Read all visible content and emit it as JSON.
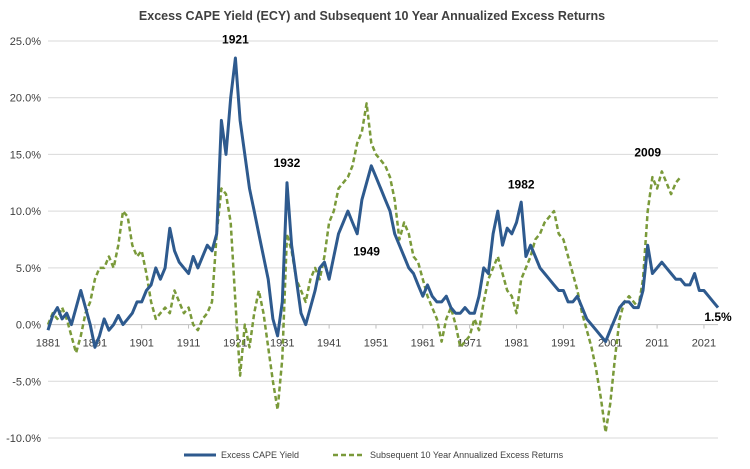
{
  "chart_data": {
    "type": "line",
    "title": "Excess CAPE Yield (ECY) and Subsequent 10 Year Annualized Excess Returns",
    "xlabel": "",
    "ylabel": "",
    "xlim": [
      1881,
      2024
    ],
    "ylim": [
      -10,
      25
    ],
    "x_ticks": [
      1881,
      1891,
      1901,
      1911,
      1921,
      1931,
      1941,
      1951,
      1961,
      1971,
      1981,
      1991,
      2001,
      2011,
      2021
    ],
    "y_ticks": [
      -10,
      -5,
      0,
      5,
      10,
      15,
      20,
      25
    ],
    "y_tick_labels": [
      "-10.0%",
      "-5.0%",
      "0.0%",
      "5.0%",
      "10.0%",
      "15.0%",
      "20.0%",
      "25.0%"
    ],
    "grid": "horizontal",
    "legend_position": "bottom",
    "series": [
      {
        "name": "Excess CAPE Yield",
        "color": "#2e5a8e",
        "style": "solid",
        "points": [
          [
            1881,
            -0.5
          ],
          [
            1882,
            0.8
          ],
          [
            1883,
            1.5
          ],
          [
            1884,
            0.5
          ],
          [
            1885,
            1.0
          ],
          [
            1886,
            0.0
          ],
          [
            1887,
            1.5
          ],
          [
            1888,
            3.0
          ],
          [
            1889,
            1.5
          ],
          [
            1890,
            0.0
          ],
          [
            1891,
            -2.0
          ],
          [
            1892,
            -1.0
          ],
          [
            1893,
            0.5
          ],
          [
            1894,
            -0.5
          ],
          [
            1895,
            0.0
          ],
          [
            1896,
            0.8
          ],
          [
            1897,
            0.0
          ],
          [
            1898,
            0.5
          ],
          [
            1899,
            1.0
          ],
          [
            1900,
            2.0
          ],
          [
            1901,
            2.0
          ],
          [
            1902,
            3.0
          ],
          [
            1903,
            3.5
          ],
          [
            1904,
            5.0
          ],
          [
            1905,
            4.0
          ],
          [
            1906,
            5.0
          ],
          [
            1907,
            8.5
          ],
          [
            1908,
            6.5
          ],
          [
            1909,
            5.5
          ],
          [
            1910,
            5.0
          ],
          [
            1911,
            4.5
          ],
          [
            1912,
            6.0
          ],
          [
            1913,
            5.0
          ],
          [
            1914,
            6.0
          ],
          [
            1915,
            7.0
          ],
          [
            1916,
            6.5
          ],
          [
            1917,
            8.0
          ],
          [
            1918,
            18.0
          ],
          [
            1919,
            15.0
          ],
          [
            1920,
            20.0
          ],
          [
            1921,
            23.5
          ],
          [
            1922,
            18.0
          ],
          [
            1923,
            15.0
          ],
          [
            1924,
            12.0
          ],
          [
            1925,
            10.0
          ],
          [
            1926,
            8.0
          ],
          [
            1927,
            6.0
          ],
          [
            1928,
            4.0
          ],
          [
            1929,
            0.5
          ],
          [
            1930,
            -1.0
          ],
          [
            1931,
            2.0
          ],
          [
            1932,
            12.5
          ],
          [
            1933,
            7.0
          ],
          [
            1934,
            4.0
          ],
          [
            1935,
            1.0
          ],
          [
            1936,
            0.0
          ],
          [
            1937,
            1.5
          ],
          [
            1938,
            3.0
          ],
          [
            1939,
            5.0
          ],
          [
            1940,
            5.5
          ],
          [
            1941,
            4.0
          ],
          [
            1942,
            6.0
          ],
          [
            1943,
            8.0
          ],
          [
            1944,
            9.0
          ],
          [
            1945,
            10.0
          ],
          [
            1946,
            9.0
          ],
          [
            1947,
            8.0
          ],
          [
            1948,
            11.0
          ],
          [
            1949,
            12.5
          ],
          [
            1950,
            14.0
          ],
          [
            1951,
            13.0
          ],
          [
            1952,
            12.0
          ],
          [
            1953,
            11.0
          ],
          [
            1954,
            10.0
          ],
          [
            1955,
            8.0
          ],
          [
            1956,
            7.0
          ],
          [
            1957,
            6.0
          ],
          [
            1958,
            5.0
          ],
          [
            1959,
            4.5
          ],
          [
            1960,
            3.5
          ],
          [
            1961,
            2.5
          ],
          [
            1962,
            3.5
          ],
          [
            1963,
            2.5
          ],
          [
            1964,
            2.0
          ],
          [
            1965,
            2.0
          ],
          [
            1966,
            2.5
          ],
          [
            1967,
            1.5
          ],
          [
            1968,
            1.0
          ],
          [
            1969,
            1.0
          ],
          [
            1970,
            1.5
          ],
          [
            1971,
            1.0
          ],
          [
            1972,
            1.0
          ],
          [
            1973,
            2.5
          ],
          [
            1974,
            5.0
          ],
          [
            1975,
            4.5
          ],
          [
            1976,
            8.0
          ],
          [
            1977,
            10.0
          ],
          [
            1978,
            7.0
          ],
          [
            1979,
            8.5
          ],
          [
            1980,
            8.0
          ],
          [
            1981,
            9.0
          ],
          [
            1982,
            10.8
          ],
          [
            1983,
            6.0
          ],
          [
            1984,
            7.0
          ],
          [
            1985,
            6.0
          ],
          [
            1986,
            5.0
          ],
          [
            1987,
            4.5
          ],
          [
            1988,
            4.0
          ],
          [
            1989,
            3.5
          ],
          [
            1990,
            3.0
          ],
          [
            1991,
            3.0
          ],
          [
            1992,
            2.0
          ],
          [
            1993,
            2.0
          ],
          [
            1994,
            2.5
          ],
          [
            1995,
            1.5
          ],
          [
            1996,
            0.5
          ],
          [
            1997,
            0.0
          ],
          [
            1998,
            -0.5
          ],
          [
            1999,
            -1.0
          ],
          [
            2000,
            -1.5
          ],
          [
            2001,
            -0.5
          ],
          [
            2002,
            0.5
          ],
          [
            2003,
            1.5
          ],
          [
            2004,
            2.0
          ],
          [
            2005,
            2.0
          ],
          [
            2006,
            1.5
          ],
          [
            2007,
            1.5
          ],
          [
            2008,
            3.0
          ],
          [
            2009,
            7.0
          ],
          [
            2010,
            4.5
          ],
          [
            2011,
            5.0
          ],
          [
            2012,
            5.5
          ],
          [
            2013,
            5.0
          ],
          [
            2014,
            4.5
          ],
          [
            2015,
            4.0
          ],
          [
            2016,
            4.0
          ],
          [
            2017,
            3.5
          ],
          [
            2018,
            3.5
          ],
          [
            2019,
            4.5
          ],
          [
            2020,
            3.0
          ],
          [
            2021,
            3.0
          ],
          [
            2022,
            2.5
          ],
          [
            2023,
            2.0
          ],
          [
            2024,
            1.5
          ]
        ]
      },
      {
        "name": "Subsequent 10 Year Annualized Excess Returns",
        "color": "#7a9a3a",
        "style": "dashed",
        "points": [
          [
            1881,
            0.0
          ],
          [
            1882,
            1.0
          ],
          [
            1883,
            0.5
          ],
          [
            1884,
            1.5
          ],
          [
            1885,
            0.5
          ],
          [
            1886,
            -1.0
          ],
          [
            1887,
            -2.5
          ],
          [
            1888,
            -1.0
          ],
          [
            1889,
            1.0
          ],
          [
            1890,
            2.0
          ],
          [
            1891,
            4.0
          ],
          [
            1892,
            5.0
          ],
          [
            1893,
            5.0
          ],
          [
            1894,
            6.0
          ],
          [
            1895,
            5.0
          ],
          [
            1896,
            7.0
          ],
          [
            1897,
            10.0
          ],
          [
            1898,
            9.5
          ],
          [
            1899,
            7.0
          ],
          [
            1900,
            6.0
          ],
          [
            1901,
            6.5
          ],
          [
            1902,
            4.5
          ],
          [
            1903,
            2.0
          ],
          [
            1904,
            0.5
          ],
          [
            1905,
            1.0
          ],
          [
            1906,
            1.5
          ],
          [
            1907,
            1.0
          ],
          [
            1908,
            3.0
          ],
          [
            1909,
            2.0
          ],
          [
            1910,
            1.0
          ],
          [
            1911,
            1.5
          ],
          [
            1912,
            0.0
          ],
          [
            1913,
            -0.5
          ],
          [
            1914,
            0.5
          ],
          [
            1915,
            1.0
          ],
          [
            1916,
            2.0
          ],
          [
            1917,
            8.0
          ],
          [
            1918,
            12.0
          ],
          [
            1919,
            11.5
          ],
          [
            1920,
            9.0
          ],
          [
            1921,
            2.0
          ],
          [
            1922,
            -4.5
          ],
          [
            1923,
            0.0
          ],
          [
            1924,
            -2.0
          ],
          [
            1925,
            1.0
          ],
          [
            1926,
            3.0
          ],
          [
            1927,
            1.0
          ],
          [
            1928,
            -2.0
          ],
          [
            1929,
            -5.0
          ],
          [
            1930,
            -7.5
          ],
          [
            1931,
            -3.0
          ],
          [
            1932,
            8.0
          ],
          [
            1933,
            6.5
          ],
          [
            1934,
            4.0
          ],
          [
            1935,
            3.0
          ],
          [
            1936,
            2.0
          ],
          [
            1937,
            4.0
          ],
          [
            1938,
            5.0
          ],
          [
            1939,
            4.0
          ],
          [
            1940,
            6.0
          ],
          [
            1941,
            9.0
          ],
          [
            1942,
            10.0
          ],
          [
            1943,
            12.0
          ],
          [
            1944,
            12.5
          ],
          [
            1945,
            13.0
          ],
          [
            1946,
            14.0
          ],
          [
            1947,
            16.0
          ],
          [
            1948,
            17.0
          ],
          [
            1949,
            19.5
          ],
          [
            1950,
            16.0
          ],
          [
            1951,
            15.0
          ],
          [
            1952,
            14.5
          ],
          [
            1953,
            14.0
          ],
          [
            1954,
            13.0
          ],
          [
            1955,
            11.0
          ],
          [
            1956,
            7.5
          ],
          [
            1957,
            9.0
          ],
          [
            1958,
            8.0
          ],
          [
            1959,
            6.0
          ],
          [
            1960,
            5.5
          ],
          [
            1961,
            4.0
          ],
          [
            1962,
            2.5
          ],
          [
            1963,
            1.5
          ],
          [
            1964,
            0.5
          ],
          [
            1965,
            -1.5
          ],
          [
            1966,
            0.5
          ],
          [
            1967,
            1.5
          ],
          [
            1968,
            0.0
          ],
          [
            1969,
            -2.0
          ],
          [
            1970,
            -1.5
          ],
          [
            1971,
            -1.0
          ],
          [
            1972,
            0.5
          ],
          [
            1973,
            -0.5
          ],
          [
            1974,
            2.0
          ],
          [
            1975,
            4.0
          ],
          [
            1976,
            5.0
          ],
          [
            1977,
            6.0
          ],
          [
            1978,
            4.5
          ],
          [
            1979,
            3.0
          ],
          [
            1980,
            2.5
          ],
          [
            1981,
            1.0
          ],
          [
            1982,
            4.0
          ],
          [
            1983,
            5.0
          ],
          [
            1984,
            6.0
          ],
          [
            1985,
            7.5
          ],
          [
            1986,
            8.0
          ],
          [
            1987,
            9.0
          ],
          [
            1988,
            9.5
          ],
          [
            1989,
            10.0
          ],
          [
            1990,
            8.0
          ],
          [
            1991,
            7.5
          ],
          [
            1992,
            6.0
          ],
          [
            1993,
            4.5
          ],
          [
            1994,
            3.0
          ],
          [
            1995,
            1.0
          ],
          [
            1996,
            -0.5
          ],
          [
            1997,
            -2.0
          ],
          [
            1998,
            -4.0
          ],
          [
            1999,
            -6.5
          ],
          [
            2000,
            -9.5
          ],
          [
            2001,
            -7.0
          ],
          [
            2002,
            -3.0
          ],
          [
            2003,
            0.5
          ],
          [
            2004,
            2.0
          ],
          [
            2005,
            2.5
          ],
          [
            2006,
            2.0
          ],
          [
            2007,
            1.5
          ],
          [
            2008,
            4.0
          ],
          [
            2009,
            10.0
          ],
          [
            2010,
            13.0
          ],
          [
            2011,
            12.0
          ],
          [
            2012,
            13.5
          ],
          [
            2013,
            12.5
          ],
          [
            2014,
            11.5
          ],
          [
            2015,
            12.5
          ],
          [
            2016,
            13.0
          ]
        ]
      }
    ],
    "annotations": [
      {
        "text": "1921",
        "x": 1921,
        "y": 24.8
      },
      {
        "text": "1932",
        "x": 1932,
        "y": 13.9
      },
      {
        "text": "1949",
        "x": 1949,
        "y": 6.1
      },
      {
        "text": "1982",
        "x": 1982,
        "y": 12.0
      },
      {
        "text": "2009",
        "x": 2009,
        "y": 14.8
      },
      {
        "text": "1.5%",
        "x": 2024,
        "y": 0.3
      }
    ]
  }
}
